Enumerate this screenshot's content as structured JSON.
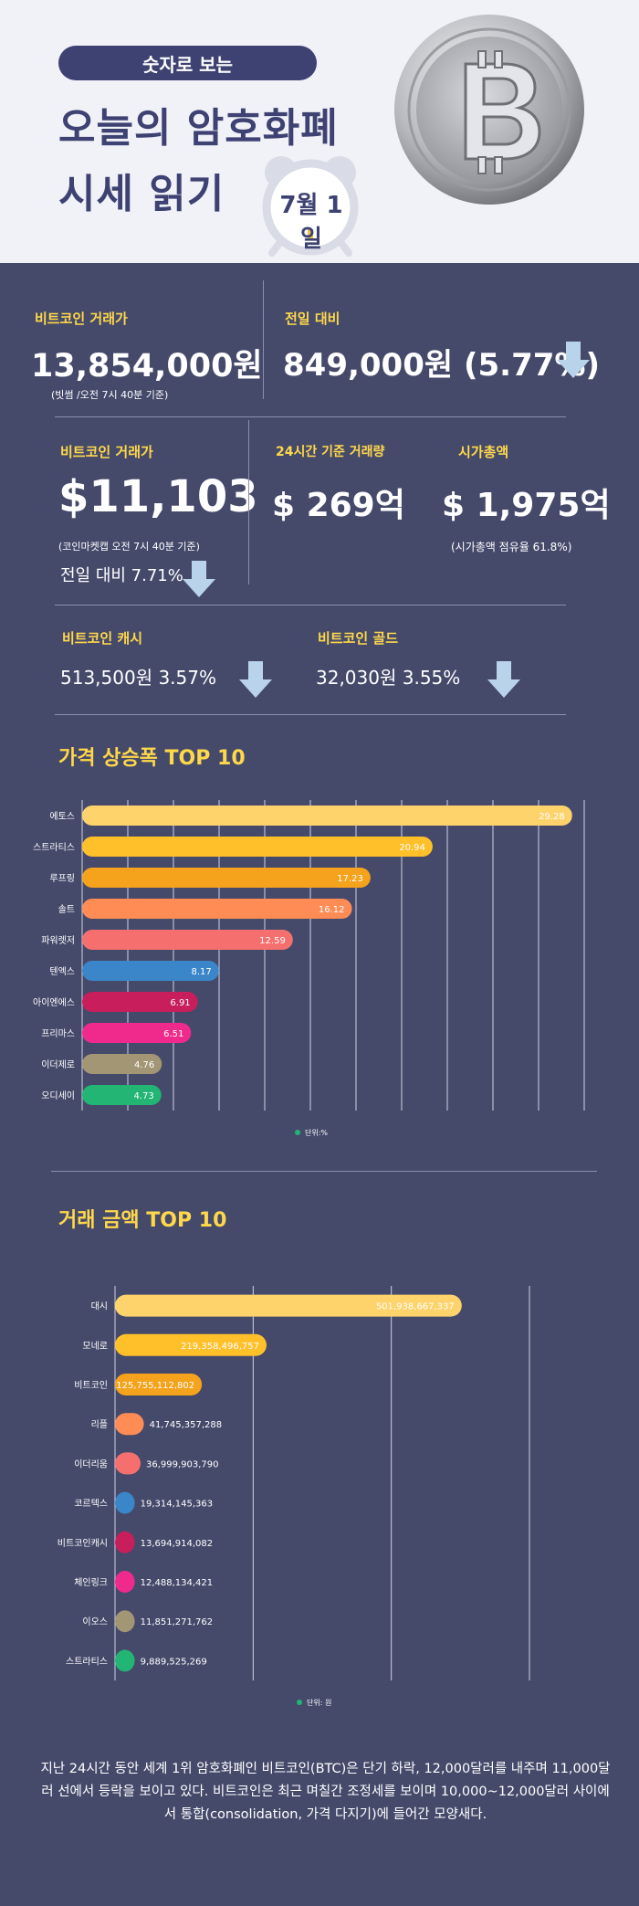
{
  "header": {
    "pill": "숫자로 보는",
    "title_line1": "오늘의 암호화폐",
    "title_line2": "시세 읽기",
    "date": "7월 1일"
  },
  "stats": {
    "btc_krw_label": "비트코인 거래가",
    "btc_krw_value": "13,854,000원",
    "btc_krw_note": "(빗썸 /오전 7시 40분 기준)",
    "krw_change_label": "전일 대비",
    "krw_change_value": "849,000원 (5.77%)",
    "btc_usd_label": "비트코인 거래가",
    "btc_usd_value": "$11,103",
    "btc_usd_note": "(코인마켓캡 오전 7시 40분 기준)",
    "btc_usd_change": "전일 대비 7.71%",
    "volume_label": "24시간 기준 거래량",
    "volume_value": "$ 269억",
    "mcap_label": "시가총액",
    "mcap_value": "$ 1,975억",
    "mcap_note": "(시가총액 점유율 61.8%)",
    "bch_label": "비트코인 캐시",
    "bch_value": "513,500원  3.57%",
    "btg_label": "비트코인 골드",
    "btg_value": "32,030원   3.55%"
  },
  "chart_data": [
    {
      "type": "bar",
      "title": "가격 상승폭 TOP 10",
      "categories": [
        "에토스",
        "스트라티스",
        "루프링",
        "솔트",
        "파워렛저",
        "텐엑스",
        "아이엔에스",
        "프리마스",
        "이더제로",
        "오디세이"
      ],
      "values": [
        29.28,
        20.94,
        17.23,
        16.12,
        12.59,
        8.17,
        6.91,
        6.51,
        4.76,
        4.73
      ],
      "value_labels": [
        "29.28",
        "20.94",
        "17.23",
        "16.12",
        "12.59",
        "8.17",
        "6.91",
        "6.51",
        "4.76",
        "4.73"
      ],
      "colors": [
        "#ffd36b",
        "#ffc02a",
        "#f5a21c",
        "#ff8c55",
        "#f56f6e",
        "#3b86c8",
        "#c81e5c",
        "#ef2a8c",
        "#a39674",
        "#22b573"
      ],
      "xlim": [
        0,
        30
      ],
      "legend": "단위:%",
      "legend_color": "#22b573",
      "grid": true
    },
    {
      "type": "bar",
      "title": "거래 금액 TOP 10",
      "categories": [
        "대시",
        "모네로",
        "비트코인",
        "리플",
        "이더리움",
        "코르텍스",
        "비트코인캐시",
        "체인링크",
        "이오스",
        "스트라티스"
      ],
      "values": [
        501938667337,
        219358496757,
        125755112802,
        41745357288,
        36999903790,
        19314145363,
        13694914082,
        12488134421,
        11851271762,
        9889525269
      ],
      "value_labels": [
        "501,938,667,337",
        "219,358,496,757",
        "125,755,112,802",
        "41,745,357,288",
        "36,999,903,790",
        "19,314,145,363",
        "13,694,914,082",
        "12,488,134,421",
        "11,851,271,762",
        "9,889,525,269"
      ],
      "colors": [
        "#ffd36b",
        "#ffc02a",
        "#f5a21c",
        "#ff8c55",
        "#f56f6e",
        "#3b86c8",
        "#c81e5c",
        "#ef2a8c",
        "#a39674",
        "#22b573"
      ],
      "xlim": [
        0,
        600000000000
      ],
      "legend": "단위: 원",
      "legend_color": "#22b573",
      "grid": true
    }
  ],
  "footer": {
    "text": "지난 24시간 동안 세계 1위 암호화폐인 비트코인(BTC)은 단기 하락, 12,000달러를 내주며 11,000달러 선에서 등락을 보이고 있다. 비트코인은 최근 며칠간 조정세를 보이며 10,000~12,000달러 사이에서 통합(consolidation, 가격 다지기)에 들어간 모양새다."
  },
  "colors": {
    "background": "#454a6b",
    "header_bg": "#f1f2f7",
    "accent_navy": "#3d4272",
    "label_yellow": "#ffd84a",
    "arrow": "#b9d4ea"
  },
  "icons": [
    "alarm-clock-icon",
    "bitcoin-coin-icon",
    "down-arrow-icon"
  ]
}
